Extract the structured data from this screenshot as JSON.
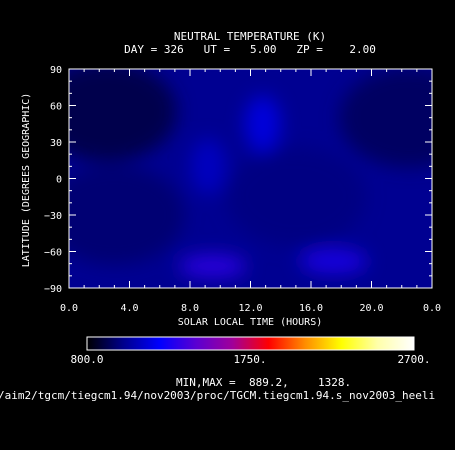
{
  "chart_data": {
    "type": "heatmap",
    "title": "NEUTRAL TEMPERATURE (K)",
    "subtitle": "DAY = 326   UT =   5.00   ZP =    2.00",
    "xlabel": "SOLAR LOCAL TIME (HOURS)",
    "ylabel": "LATITUDE (DEGREES GEOGRAPHIC)",
    "xlim": [
      0,
      24
    ],
    "ylim": [
      -90,
      90
    ],
    "x_ticks": [
      "0.0",
      "4.0",
      "8.0",
      "12.0",
      "16.0",
      "20.0",
      "0.0"
    ],
    "y_ticks": [
      "90",
      "60",
      "30",
      "0",
      "−30",
      "−60",
      "−90"
    ],
    "units": "K",
    "colorbar": {
      "min_label": "800.0",
      "mid_label": "1750.",
      "max_label": "2700.",
      "min": 800,
      "max": 2700,
      "colors": [
        "#000000",
        "#00008c",
        "#0000ff",
        "#5a00d2",
        "#a0009a",
        "#ff0000",
        "#ff8c00",
        "#ffff00",
        "#ffffaa",
        "#ffffff"
      ]
    },
    "field_min": 889.2,
    "field_max": 1328,
    "background_value": 1020,
    "features": [
      {
        "kind": "minimum",
        "center_lt": 2.5,
        "center_lat": 55,
        "value": 889.2
      },
      {
        "kind": "minimum",
        "center_lt": 22.5,
        "center_lat": 50,
        "value": 930
      },
      {
        "kind": "minimum",
        "center_lt": 3.0,
        "center_lat": -30,
        "value": 960
      },
      {
        "kind": "minimum",
        "center_lt": 15.0,
        "center_lat": -15,
        "value": 990
      },
      {
        "kind": "maximum",
        "center_lt": 9.5,
        "center_lat": -72,
        "value": 1328
      },
      {
        "kind": "maximum",
        "center_lt": 17.5,
        "center_lat": -68,
        "value": 1300
      },
      {
        "kind": "maximum",
        "center_lt": 12.8,
        "center_lat": 45,
        "value": 1180
      },
      {
        "kind": "maximum",
        "center_lt": 9.2,
        "center_lat": 10,
        "value": 1120
      }
    ]
  },
  "minmax": {
    "label": "MIN,MAX =",
    "min": "889.2,",
    "max": "1328."
  },
  "footer_path": "/aim2/tgcm/tiegcm1.94/nov2003/proc/TGCM.tiegcm1.94.s_nov2003_heeli"
}
